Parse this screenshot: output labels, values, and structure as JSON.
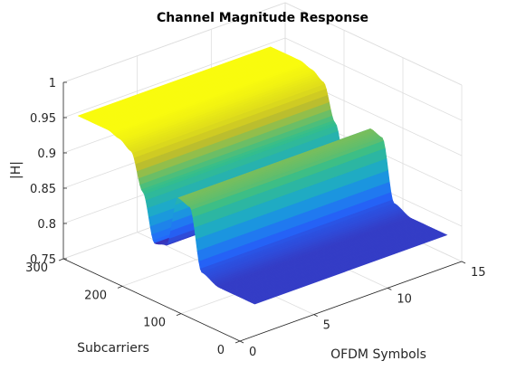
{
  "chart_data": {
    "type": "surface",
    "title": "Channel Magnitude Response",
    "xlabel": "OFDM Symbols",
    "ylabel": "Subcarriers",
    "zlabel": "|H|",
    "xlim": [
      0,
      15
    ],
    "ylim": [
      0,
      300
    ],
    "zlim": [
      0.75,
      1
    ],
    "xticks": [
      0,
      5,
      10,
      15
    ],
    "yticks": [
      0,
      100,
      200,
      300
    ],
    "zticks": [
      0.75,
      0.8,
      0.85,
      0.9,
      0.95,
      1
    ],
    "xtick_labels": [
      "0",
      "5",
      "10",
      "15"
    ],
    "ytick_labels": [
      "0",
      "100",
      "200",
      "300"
    ],
    "ztick_labels": [
      "0.75",
      "0.8",
      "0.85",
      "0.9",
      "0.95",
      "1"
    ],
    "symbols": [
      1,
      14
    ],
    "subcarrier_profile": {
      "x": [
        0,
        60,
        90,
        110,
        130,
        150,
        170,
        190,
        210,
        230,
        250,
        300
      ],
      "z": [
        0.795,
        0.795,
        0.805,
        0.89,
        0.895,
        0.82,
        0.815,
        0.88,
        0.93,
        0.94,
        0.945,
        0.945
      ]
    },
    "colormap": "parula",
    "grid": true
  }
}
